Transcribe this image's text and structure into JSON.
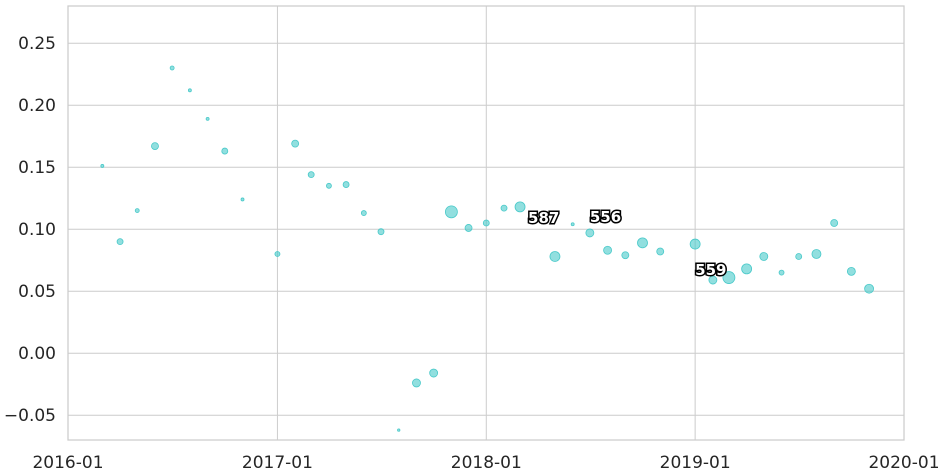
{
  "chart_data": {
    "type": "scatter",
    "title": "",
    "xlabel": "",
    "ylabel": "",
    "xlim": [
      "2016-01",
      "2020-01"
    ],
    "ylim": [
      -0.07,
      0.28
    ],
    "grid": true,
    "legend": "none",
    "color": "#48c9c9",
    "x_ticks": [
      "2016-01",
      "2017-01",
      "2018-01",
      "2019-01",
      "2020-01"
    ],
    "y_ticks": [
      -0.05,
      0.0,
      0.05,
      0.1,
      0.15,
      0.2,
      0.25
    ],
    "y_tick_labels": [
      "−0.05",
      "0.00",
      "0.05",
      "0.10",
      "0.15",
      "0.20",
      "0.25"
    ],
    "points": [
      {
        "x": "2016-03-01",
        "y": 0.151,
        "size": 1.5
      },
      {
        "x": "2016-04-01",
        "y": 0.09,
        "size": 3
      },
      {
        "x": "2016-05-01",
        "y": 0.115,
        "size": 2
      },
      {
        "x": "2016-06-01",
        "y": 0.167,
        "size": 3.5
      },
      {
        "x": "2016-07-01",
        "y": 0.23,
        "size": 2
      },
      {
        "x": "2016-08-01",
        "y": 0.212,
        "size": 1.5
      },
      {
        "x": "2016-09-01",
        "y": 0.189,
        "size": 1.5
      },
      {
        "x": "2016-10-01",
        "y": 0.163,
        "size": 3
      },
      {
        "x": "2016-11-01",
        "y": 0.124,
        "size": 1.5
      },
      {
        "x": "2017-01-01",
        "y": 0.08,
        "size": 2.5
      },
      {
        "x": "2017-02-01",
        "y": 0.169,
        "size": 3.5
      },
      {
        "x": "2017-03-01",
        "y": 0.144,
        "size": 3
      },
      {
        "x": "2017-04-01",
        "y": 0.135,
        "size": 2.5
      },
      {
        "x": "2017-05-01",
        "y": 0.136,
        "size": 3
      },
      {
        "x": "2017-06-01",
        "y": 0.113,
        "size": 2.5
      },
      {
        "x": "2017-07-01",
        "y": 0.098,
        "size": 3
      },
      {
        "x": "2017-08-01",
        "y": -0.062,
        "size": 1.2
      },
      {
        "x": "2017-09-01",
        "y": -0.024,
        "size": 4
      },
      {
        "x": "2017-10-01",
        "y": -0.016,
        "size": 4
      },
      {
        "x": "2017-11-01",
        "y": 0.114,
        "size": 6
      },
      {
        "x": "2017-12-01",
        "y": 0.101,
        "size": 3.5
      },
      {
        "x": "2018-01-01",
        "y": 0.105,
        "size": 3
      },
      {
        "x": "2018-02-01",
        "y": 0.117,
        "size": 3
      },
      {
        "x": "2018-03-01",
        "y": 0.118,
        "size": 5
      },
      {
        "x": "2018-05-01",
        "y": 0.078,
        "size": 5
      },
      {
        "x": "2018-06-01",
        "y": 0.104,
        "size": 1.5
      },
      {
        "x": "2018-07-01",
        "y": 0.097,
        "size": 4
      },
      {
        "x": "2018-08-01",
        "y": 0.083,
        "size": 4
      },
      {
        "x": "2018-09-01",
        "y": 0.079,
        "size": 3.5
      },
      {
        "x": "2018-10-01",
        "y": 0.089,
        "size": 5
      },
      {
        "x": "2018-11-01",
        "y": 0.082,
        "size": 3.5
      },
      {
        "x": "2019-01-01",
        "y": 0.088,
        "size": 5
      },
      {
        "x": "2019-02-01",
        "y": 0.059,
        "size": 4
      },
      {
        "x": "2019-03-01",
        "y": 0.061,
        "size": 6
      },
      {
        "x": "2019-04-01",
        "y": 0.068,
        "size": 5
      },
      {
        "x": "2019-05-01",
        "y": 0.078,
        "size": 4
      },
      {
        "x": "2019-06-01",
        "y": 0.065,
        "size": 2.5
      },
      {
        "x": "2019-07-01",
        "y": 0.078,
        "size": 3
      },
      {
        "x": "2019-08-01",
        "y": 0.08,
        "size": 4.5
      },
      {
        "x": "2019-09-01",
        "y": 0.105,
        "size": 3.5
      },
      {
        "x": "2019-10-01",
        "y": 0.066,
        "size": 4
      },
      {
        "x": "2019-11-01",
        "y": 0.052,
        "size": 4.5
      }
    ],
    "annotations": [
      {
        "text": "587",
        "x": "2018-03-15",
        "y": 0.105
      },
      {
        "text": "556",
        "x": "2018-07-01",
        "y": 0.106
      },
      {
        "text": "559",
        "x": "2019-01-01",
        "y": 0.063
      }
    ]
  }
}
